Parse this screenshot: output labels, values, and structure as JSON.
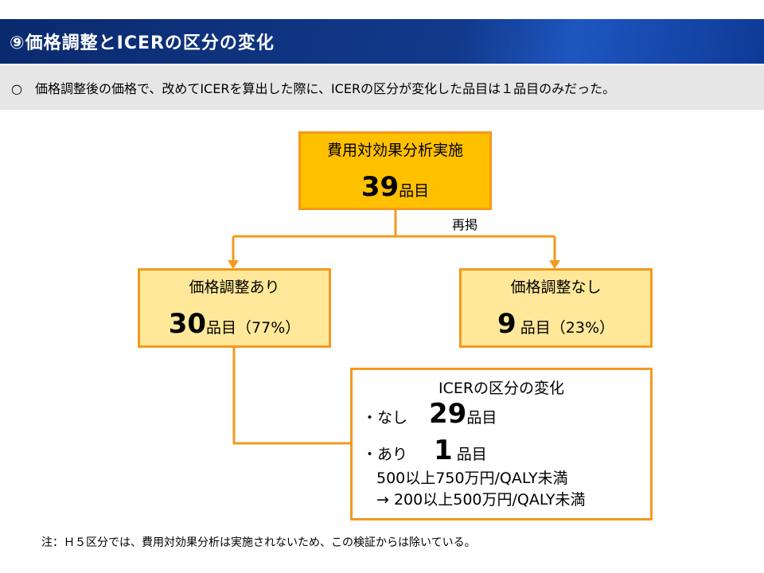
{
  "header": {
    "title": "⑨価格調整とICERの区分の変化",
    "summary": "○　価格調整後の価格で、改めてICERを算出した際に、ICERの区分が変化した品目は１品目のみだった。"
  },
  "nodes": [
    {
      "label": "費用対効果分析実施",
      "count": 39,
      "unit": "品目"
    },
    {
      "label": "価格調整あり",
      "count": 30,
      "unit": "品目",
      "share": "（77%）"
    },
    {
      "label": "価格調整なし",
      "count": 9,
      "unit": "品目",
      "share": "（23%）"
    }
  ],
  "edge_label": "再掲",
  "change_box": {
    "title": "ICERの区分の変化",
    "rows": [
      {
        "label": "・なし",
        "count": 29,
        "unit": "品目"
      },
      {
        "label": "・あり",
        "count": 1,
        "unit": "品目"
      }
    ],
    "details": [
      "500以上750万円/QALY未満",
      "→ 200以上500万円/QALY未満"
    ]
  },
  "note": "注：Ｈ５区分では、費用対効果分析は実施されないため、この検証からは除いている。"
}
